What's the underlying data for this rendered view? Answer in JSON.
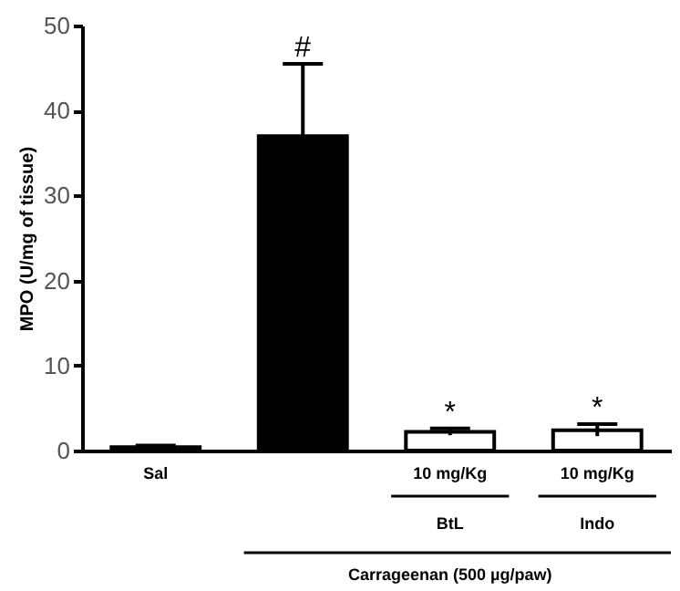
{
  "chart_data": {
    "type": "bar",
    "ylabel": "MPO (U/mg of tissue)",
    "categories": [
      "Sal",
      null,
      "10 mg/Kg",
      "10 mg/Kg"
    ],
    "values": [
      0.4,
      37.0,
      2.2,
      2.4
    ],
    "errors": [
      0.2,
      8.5,
      0.4,
      0.7
    ],
    "colors": [
      "#000000",
      "#000000",
      "#ffffff",
      "#ffffff"
    ],
    "ylim": [
      0,
      50
    ],
    "yticks": [
      0,
      10,
      20,
      30,
      40,
      50
    ],
    "annotations": [
      "#",
      "*",
      "*",
      "BtL",
      "Indo",
      "Carrageenan (500 µg/paw)"
    ]
  }
}
